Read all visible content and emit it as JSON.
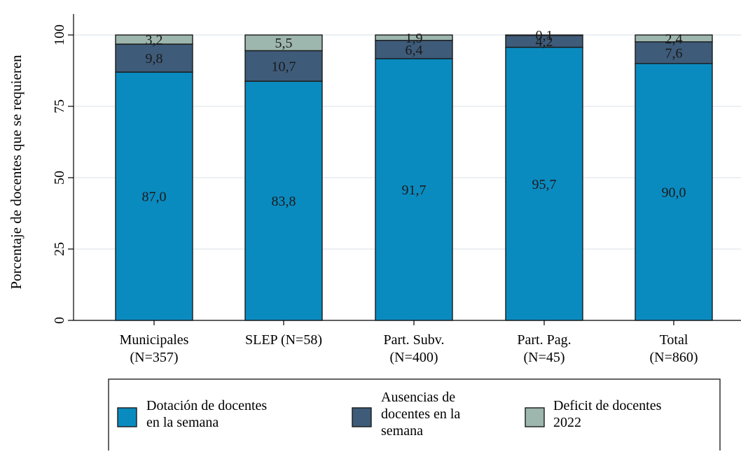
{
  "chart_data": {
    "type": "bar",
    "stacked": true,
    "orientation": "vertical",
    "ylabel": "Porcentaje de docentes que se requieren",
    "xlabel": "",
    "ylim": [
      0,
      105
    ],
    "yticks": [
      0,
      25,
      50,
      75,
      100
    ],
    "grid": true,
    "legend_position": "bottom",
    "categories": [
      [
        "Municipales",
        "(N=357)"
      ],
      [
        "SLEP (N=58)"
      ],
      [
        "Part. Subv.",
        "(N=400)"
      ],
      [
        "Part. Pag.",
        "(N=45)"
      ],
      [
        "Total",
        "(N=860)"
      ]
    ],
    "series": [
      {
        "name": [
          "Dotación de docentes",
          "en la semana"
        ],
        "color": "#0a8bc0",
        "values": [
          87.0,
          83.8,
          91.7,
          95.7,
          90.0
        ],
        "labels": [
          "87,0",
          "83,8",
          "91,7",
          "95,7",
          "90,0"
        ]
      },
      {
        "name": [
          "Ausencias de",
          "docentes en la",
          "semana"
        ],
        "color": "#3e5b79",
        "values": [
          9.8,
          10.7,
          6.4,
          4.2,
          7.6
        ],
        "labels": [
          "9,8",
          "10,7",
          "6,4",
          "4,2",
          "7,6"
        ]
      },
      {
        "name": [
          "Deficit de docentes",
          "2022"
        ],
        "color": "#9db6ae",
        "values": [
          3.2,
          5.5,
          1.9,
          0.1,
          2.4
        ],
        "labels": [
          "3,2",
          "5,5",
          "1,9",
          "0,1",
          "2,4"
        ]
      }
    ]
  }
}
